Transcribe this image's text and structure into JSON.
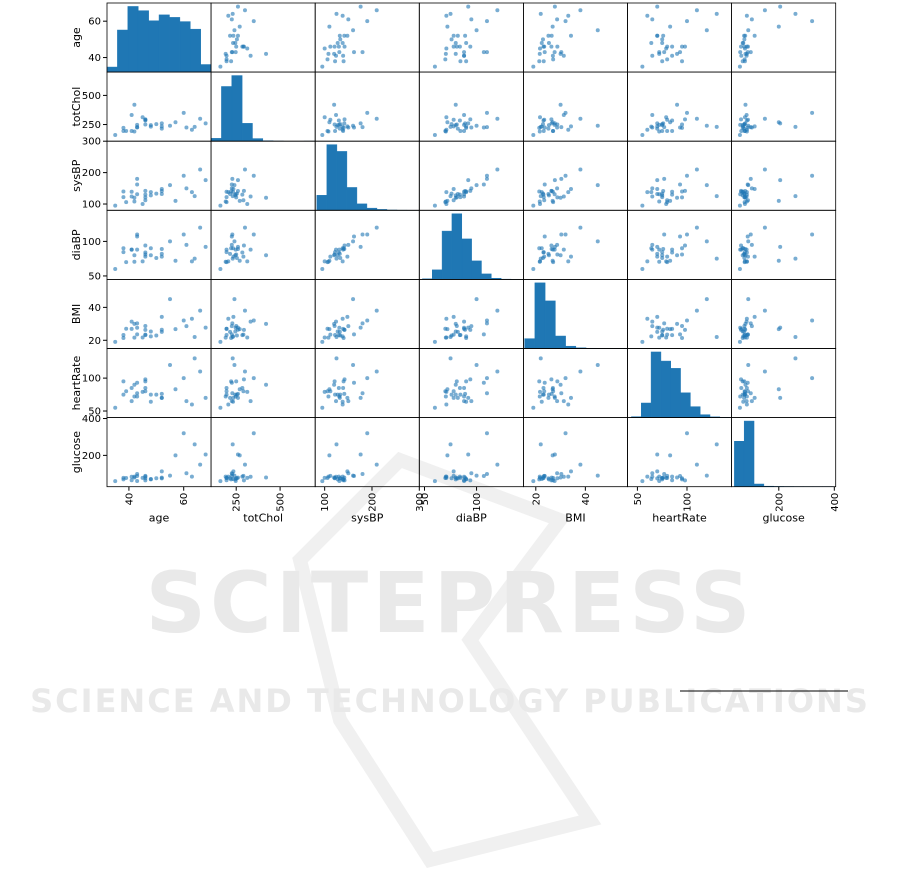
{
  "chart_data": {
    "type": "scatter_matrix",
    "color": "#1f77b4",
    "variables": [
      {
        "name": "age",
        "lim": [
          32,
          70
        ],
        "ticks": [
          40,
          60
        ],
        "bins": [
          32,
          35.8,
          39.6,
          43.4,
          47.2,
          51,
          54.8,
          58.6,
          62.4,
          66.2,
          70
        ],
        "counts": [
          60,
          500,
          780,
          730,
          610,
          680,
          650,
          600,
          510,
          90
        ]
      },
      {
        "name": "totChol",
        "lim": [
          107,
          700
        ],
        "ticks": [
          250,
          500
        ],
        "bins": [
          107,
          165.9,
          224.8,
          283.7,
          342.6,
          401.5,
          460.4,
          519.3,
          578.2,
          637.1,
          696
        ],
        "counts": [
          120,
          2300,
          2760,
          750,
          110,
          20,
          5,
          0,
          0,
          2
        ]
      },
      {
        "name": "sysBP",
        "lim": [
          80,
          300
        ],
        "ticks": [
          100,
          200,
          300
        ],
        "bins": [
          83.5,
          104.65,
          125.8,
          146.95,
          168.1,
          189.25,
          210.4,
          231.55,
          252.7,
          273.85,
          295
        ],
        "counts": [
          420,
          1840,
          1650,
          640,
          180,
          60,
          25,
          8,
          3,
          2
        ]
      },
      {
        "name": "diaBP",
        "lim": [
          45,
          145
        ],
        "ticks": [
          50,
          100
        ],
        "bins": [
          48,
          57.45,
          66.9,
          76.35,
          85.8,
          95.25,
          104.7,
          114.15,
          123.6,
          133.05,
          142.5
        ],
        "counts": [
          20,
          330,
          1670,
          2270,
          1400,
          640,
          190,
          40,
          8,
          4
        ]
      },
      {
        "name": "BMI",
        "lim": [
          15,
          57
        ],
        "ticks": [
          20,
          40
        ],
        "bins": [
          15.5,
          19.63,
          23.76,
          27.89,
          32.02,
          36.15,
          40.28,
          44.41,
          48.54,
          52.67,
          56.8
        ],
        "counts": [
          300,
          2000,
          1450,
          380,
          70,
          20,
          8,
          3,
          2,
          1
        ]
      },
      {
        "name": "heartRate",
        "lim": [
          40,
          145
        ],
        "ticks": [
          50,
          100
        ],
        "bins": [
          44,
          53.9,
          63.8,
          73.7,
          83.6,
          93.5,
          103.4,
          113.3,
          123.2,
          133.1,
          143
        ],
        "counts": [
          25,
          400,
          1800,
          1550,
          1350,
          680,
          300,
          80,
          20,
          5
        ]
      },
      {
        "name": "glucose",
        "lim": [
          30,
          405
        ],
        "ticks": [
          200,
          400
        ],
        "bins": [
          40,
          75.4,
          110.8,
          146.2,
          181.6,
          217,
          252.4,
          287.8,
          323.2,
          358.6,
          394
        ],
        "counts": [
          2700,
          3900,
          160,
          30,
          15,
          10,
          6,
          5,
          4,
          4
        ]
      }
    ],
    "observations": [
      [
        39,
        195,
        106,
        70,
        27,
        80,
        77
      ],
      [
        46,
        250,
        121,
        81,
        28.7,
        95,
        76
      ],
      [
        48,
        245,
        127.5,
        80,
        25.3,
        75,
        70
      ],
      [
        61,
        225,
        150,
        95,
        28.6,
        65,
        103
      ],
      [
        46,
        285,
        130,
        84,
        23.1,
        85,
        85
      ],
      [
        43,
        228,
        180,
        110,
        30.3,
        77,
        99
      ],
      [
        63,
        205,
        138,
        71,
        33.1,
        60,
        85
      ],
      [
        45,
        313,
        100,
        71,
        21.7,
        79,
        78
      ],
      [
        52,
        260,
        141.5,
        89,
        26.4,
        76,
        79
      ],
      [
        43,
        225,
        162,
        107,
        23.6,
        93,
        88
      ],
      [
        50,
        254,
        133,
        76,
        22.9,
        75,
        76
      ],
      [
        43,
        247,
        131,
        88,
        27.6,
        72,
        61
      ],
      [
        46,
        294,
        142,
        94,
        26.3,
        98,
        64
      ],
      [
        41,
        332,
        124,
        88,
        31.3,
        65,
        84
      ],
      [
        38,
        221,
        140,
        90,
        21.4,
        95,
        70
      ],
      [
        48,
        232,
        138,
        90,
        22.4,
        64,
        72
      ],
      [
        46,
        291,
        112,
        78,
        23.4,
        80,
        89
      ],
      [
        38,
        195,
        122,
        84.5,
        23.2,
        75,
        78
      ],
      [
        41,
        195,
        139,
        88,
        26.9,
        85,
        65
      ],
      [
        42,
        190,
        108,
        70.5,
        21.6,
        72,
        85
      ],
      [
        52,
        234,
        148,
        78,
        34.2,
        70,
        113
      ],
      [
        52,
        215,
        132,
        82,
        25.1,
        70,
        75
      ],
      [
        68,
        260,
        176,
        92,
        27.7,
        70,
        205
      ],
      [
        57,
        270,
        110,
        72,
        26.8,
        83,
        200
      ],
      [
        60,
        350,
        190,
        110,
        32,
        100,
        320
      ],
      [
        35,
        160,
        95,
        60,
        19,
        55,
        60
      ],
      [
        66,
        300,
        210,
        120,
        38,
        110,
        150
      ],
      [
        55,
        240,
        160,
        100,
        45,
        120,
        90
      ],
      [
        42,
        420,
        120,
        80,
        30,
        90,
        80
      ],
      [
        64,
        230,
        125,
        75,
        22,
        130,
        260
      ]
    ]
  },
  "watermark": {
    "title": "SCITEPRESS",
    "subtitle": "SCIENCE AND TECHNOLOGY PUBLICATIONS"
  }
}
